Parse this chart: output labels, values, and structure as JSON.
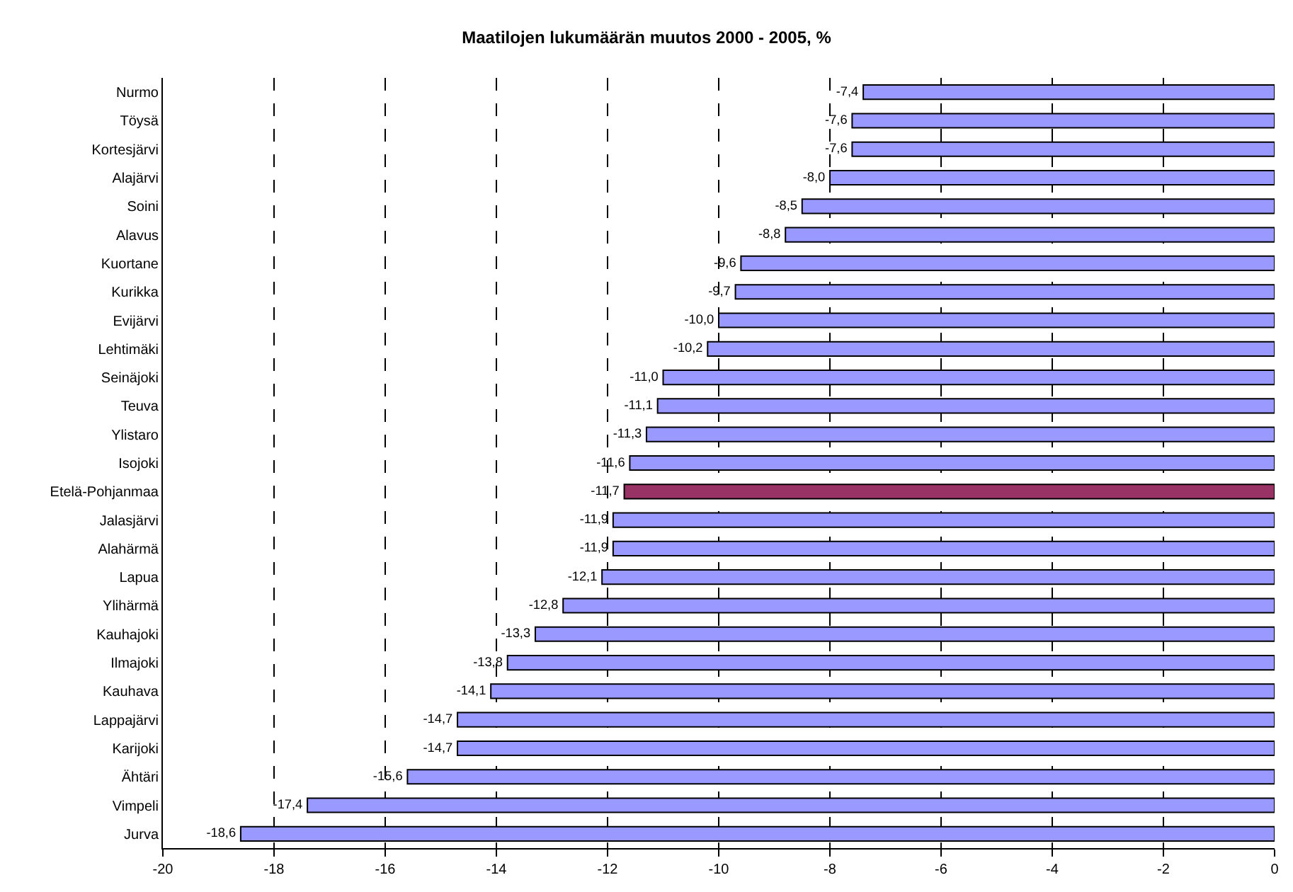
{
  "chart_data": {
    "type": "bar",
    "orientation": "horizontal",
    "title": "Maatilojen lukumäärän muutos 2000 - 2005, %",
    "categories": [
      "Nurmo",
      "Töysä",
      "Kortesjärvi",
      "Alajärvi",
      "Soini",
      "Alavus",
      "Kuortane",
      "Kurikka",
      "Evijärvi",
      "Lehtimäki",
      "Seinäjoki",
      "Teuva",
      "Ylistaro",
      "Isojoki",
      "Etelä-Pohjanmaa",
      "Jalasjärvi",
      "Alahärmä",
      "Lapua",
      "Ylihärmä",
      "Kauhajoki",
      "Ilmajoki",
      "Kauhava",
      "Lappajärvi",
      "Karijoki",
      "Ähtäri",
      "Vimpeli",
      "Jurva"
    ],
    "values": [
      -7.4,
      -7.6,
      -7.6,
      -8.0,
      -8.5,
      -8.8,
      -9.6,
      -9.7,
      -10.0,
      -10.2,
      -11.0,
      -11.1,
      -11.3,
      -11.6,
      -11.7,
      -11.9,
      -11.9,
      -12.1,
      -12.8,
      -13.3,
      -13.8,
      -14.1,
      -14.7,
      -14.7,
      -15.6,
      -17.4,
      -18.6
    ],
    "value_labels": [
      "-7,4",
      "-7,6",
      "-7,6",
      "-8,0",
      "-8,5",
      "-8,8",
      "-9,6",
      "-9,7",
      "-10,0",
      "-10,2",
      "-11,0",
      "-11,1",
      "-11,3",
      "-11,6",
      "-11,7",
      "-11,9",
      "-11,9",
      "-12,1",
      "-12,8",
      "-13,3",
      "-13,8",
      "-14,1",
      "-14,7",
      "-14,7",
      "-15,6",
      "-17,4",
      "-18,6"
    ],
    "colors": [
      "#9999ff",
      "#9999ff",
      "#9999ff",
      "#9999ff",
      "#9999ff",
      "#9999ff",
      "#9999ff",
      "#9999ff",
      "#9999ff",
      "#9999ff",
      "#9999ff",
      "#9999ff",
      "#9999ff",
      "#9999ff",
      "#993366",
      "#9999ff",
      "#9999ff",
      "#9999ff",
      "#9999ff",
      "#9999ff",
      "#9999ff",
      "#9999ff",
      "#9999ff",
      "#9999ff",
      "#9999ff",
      "#9999ff",
      "#9999ff"
    ],
    "xlim": [
      -20,
      0
    ],
    "xticks": [
      -20,
      -18,
      -16,
      -14,
      -12,
      -10,
      -8,
      -6,
      -4,
      -2,
      0
    ],
    "grid": "x"
  }
}
